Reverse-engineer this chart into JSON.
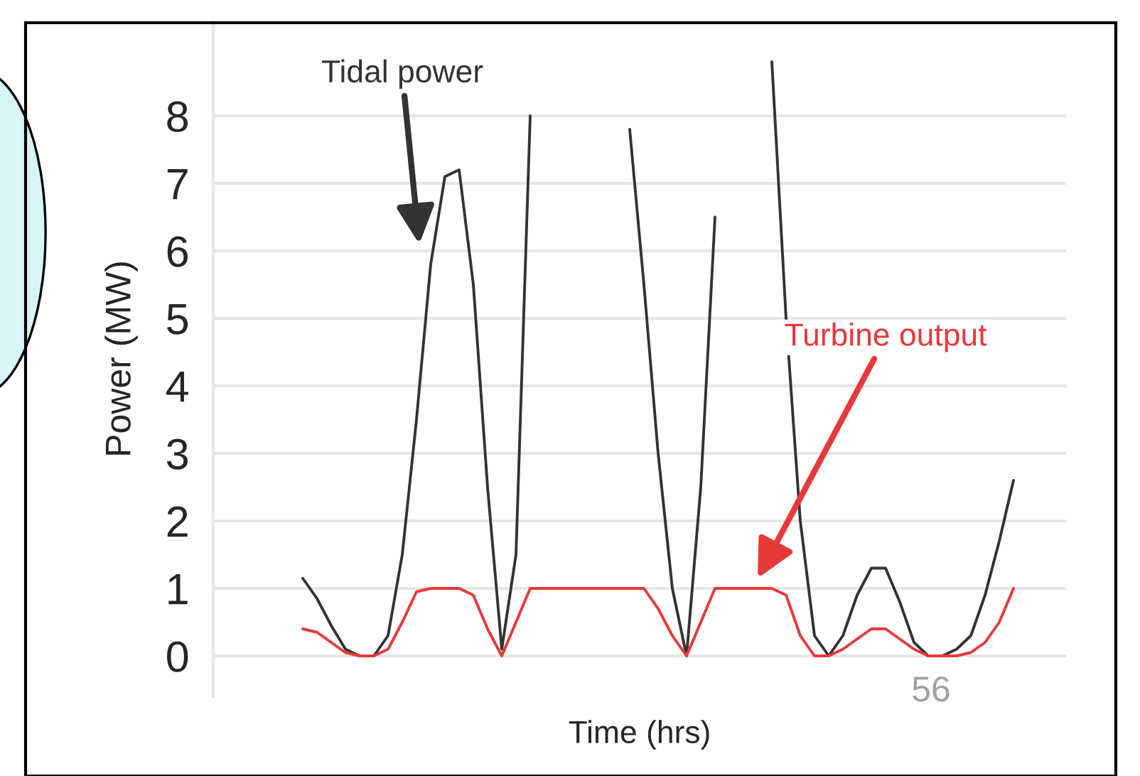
{
  "chart_data": {
    "type": "line",
    "xlabel": "Time (hrs)",
    "ylabel": "Power (MW)",
    "categories": [
      null,
      null,
      null,
      null,
      null,
      null,
      null,
      null,
      null,
      null,
      null,
      null,
      null,
      null,
      null,
      null,
      null,
      null,
      null,
      null,
      null,
      null,
      null,
      null,
      null,
      null,
      null,
      null,
      null,
      null,
      null,
      null,
      null,
      null,
      null,
      null,
      null,
      null,
      null,
      null,
      null,
      null,
      null,
      null,
      null,
      null,
      null,
      null,
      null,
      null,
      null
    ],
    "series": [
      {
        "name": "Tidal power",
        "color": "#333333",
        "values": [
          1.15,
          0.85,
          0.45,
          0.1,
          0,
          0,
          0.3,
          1.5,
          3.5,
          5.8,
          7.1,
          7.2,
          5.5,
          2.5,
          0.1,
          1.5,
          8.0,
          null,
          null,
          null,
          null,
          null,
          null,
          7.8,
          5.5,
          3.0,
          1.0,
          0,
          2.5,
          6.5,
          null,
          null,
          null,
          8.8,
          5.0,
          2.0,
          0.3,
          0,
          0.3,
          0.9,
          1.3,
          1.3,
          0.8,
          0.2,
          0,
          0,
          0.1,
          0.3,
          0.9,
          1.7,
          2.6
        ]
      },
      {
        "name": "Turbine output",
        "color": "#e8393a",
        "values": [
          0.4,
          0.35,
          0.2,
          0.05,
          0,
          0,
          0.1,
          0.5,
          0.95,
          1,
          1,
          1,
          0.9,
          0.4,
          0,
          0.5,
          1,
          1,
          1,
          1,
          1,
          1,
          1,
          1,
          1,
          0.7,
          0.3,
          0,
          0.5,
          1,
          1,
          1,
          1,
          1,
          0.9,
          0.3,
          0,
          0,
          0.1,
          0.25,
          0.4,
          0.4,
          0.25,
          0.1,
          0,
          0,
          0,
          0.05,
          0.2,
          0.5,
          1.0
        ]
      }
    ],
    "ylim": [
      -0.6,
      9.4
    ],
    "yticks": [
      0,
      1,
      2,
      3,
      4,
      5,
      6,
      7,
      8
    ],
    "grid": "y",
    "tick_labels": "y",
    "annotations": [
      "56"
    ]
  }
}
